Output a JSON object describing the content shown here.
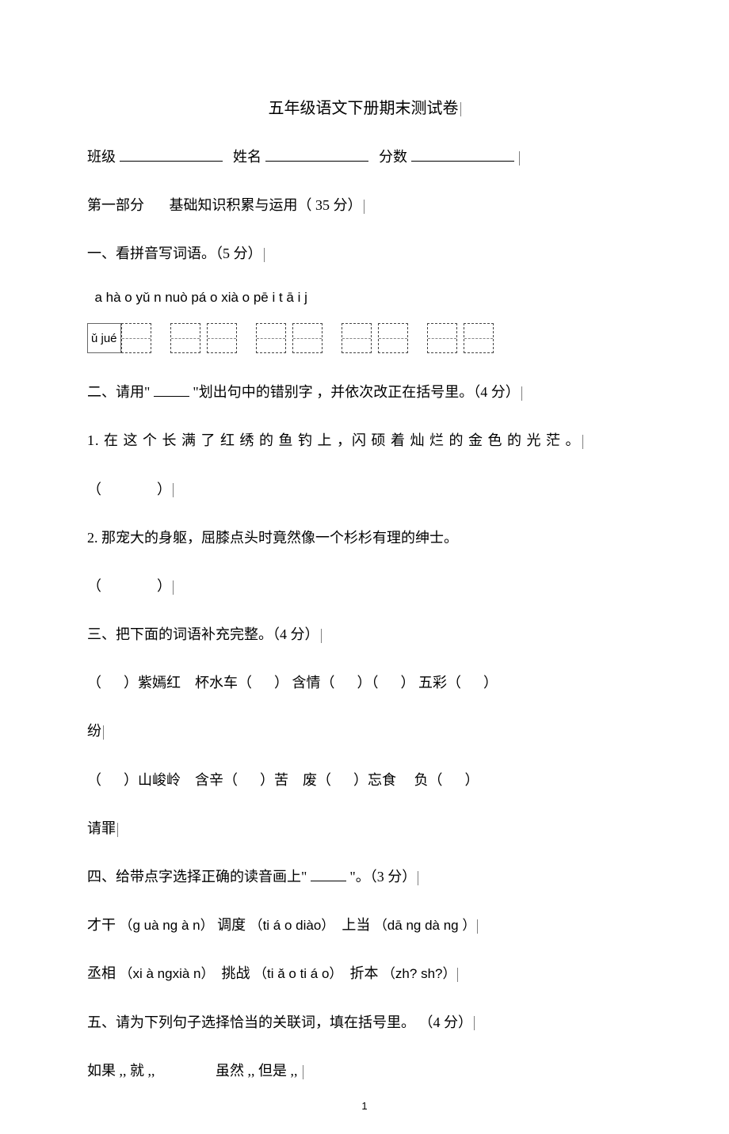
{
  "title": "五年级语文下册期末测试卷",
  "header": {
    "class_label": "班级",
    "name_label": "姓名",
    "score_label": "分数"
  },
  "part1": {
    "heading": "第一部分",
    "heading_desc": "基础知识积累与运用（ 35 分）"
  },
  "q1": {
    "heading": "一、看拼音写词语。（5 分）",
    "pinyin": "a   hà o      yǔ n   nuò       pá o xià o      pē i t ā i       j",
    "leading_box": "ǔ    jué"
  },
  "q2": {
    "heading_pre": "二、请用\"",
    "heading_post": "\"划出句中的错别字 ，并依次改正在括号里。（4 分）",
    "s1": "1. 在 这 个 长 满 了 红 绣 的 鱼 钓 上 ，闪 硕 着 灿 烂 的 金 色 的 光 茫 。",
    "s2": "2. 那宠大的身躯，屈膝点头时竟然像一个杉杉有理的绅士。"
  },
  "q3": {
    "heading": "三、把下面的词语补充完整。（4 分）",
    "row1": {
      "a": "）紫嫣红",
      "b": "杯水车（",
      "c": "） 含情（",
      "d": "）（",
      "e": "）  五彩（",
      "f": "）"
    },
    "row1_tail": "纷",
    "row2": {
      "a": "）山峻岭",
      "b": "含辛（",
      "c": "）苦",
      "d": "废（",
      "e": "）忘食",
      "f": "负（",
      "g": "）"
    },
    "row2_tail": "请罪"
  },
  "q4": {
    "heading_pre": "四、给带点字选择正确的读音画上\"",
    "heading_post": "\"。（3 分）",
    "line1": {
      "w1": "才",
      "w1d": "干",
      "p1": "（ɡ uà nɡ à n）",
      "w2": "调",
      "w2d": "度",
      "p2": "（ti á o  diào）",
      "w3": "上",
      "w3d": "当",
      "p3": "（dā nɡ dà nɡ ）"
    },
    "line2": {
      "w1d": "丞",
      "w1": "相",
      "p1": "（xi à nɡxià n）",
      "w2d": "挑",
      "w2": "战",
      "p2": "（ti ǎ o  ti á o）",
      "w3d": "折",
      "w3": "本",
      "p3": "（zh?  sh?）"
    }
  },
  "q5": {
    "heading": "五、请为下列句子选择恰当的关联词，填在括号里。 （4 分）",
    "opt1": "如果 ,, 就 ,,",
    "opt2": "虽然 ,, 但是 ,,"
  },
  "page_num": "1"
}
